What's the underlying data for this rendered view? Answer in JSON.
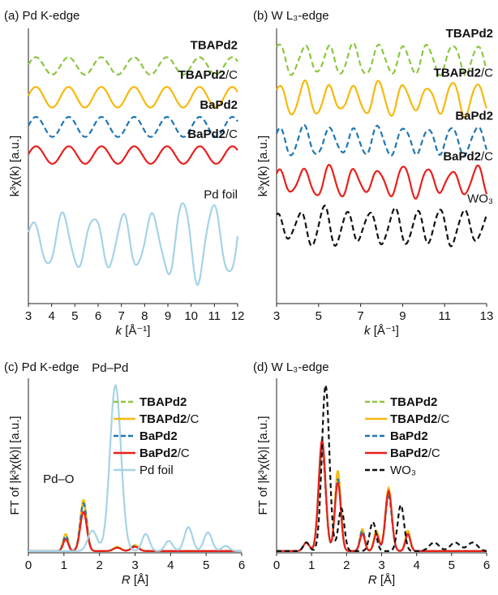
{
  "colors": {
    "tbapd2": "#8dc63f",
    "tbapd2c": "#f5b90f",
    "bapd2": "#1f77b4",
    "bapd2c": "#e8201c",
    "pdfoil": "#a6d3e6",
    "wo3": "#111111"
  },
  "chart_data": [
    {
      "id": "a",
      "type": "line",
      "panel_title": "(a) Pd K-edge",
      "xlabel_pre": "k",
      "xlabel_post": " [Å⁻¹]",
      "ylabel": "k³χ(k) [a.u.]",
      "xlim": [
        3,
        12
      ],
      "xticks": [
        "3",
        "4",
        "5",
        "6",
        "7",
        "8",
        "9",
        "10",
        "11",
        "12"
      ],
      "xtick_values": [
        3,
        4,
        5,
        6,
        7,
        8,
        9,
        10,
        11,
        12
      ],
      "series": [
        {
          "name": "TBAPd2",
          "label_main": "TBAPd2",
          "label_suffix": "",
          "color_key": "tbapd2",
          "dash": true,
          "offset": 4.0,
          "amp": 0.28,
          "freq": 1.42,
          "phase": 0.15,
          "noise": 0.0
        },
        {
          "name": "TBAPd2/C",
          "label_main": "TBAPd2",
          "label_suffix": "/C",
          "color_key": "tbapd2c",
          "dash": false,
          "offset": 3.0,
          "amp": 0.33,
          "freq": 1.42,
          "phase": 0.15,
          "noise": 0.0
        },
        {
          "name": "BaPd2",
          "label_main": "BaPd2",
          "label_suffix": "",
          "color_key": "bapd2",
          "dash": true,
          "offset": 2.05,
          "amp": 0.32,
          "freq": 1.42,
          "phase": 0.1,
          "noise": 0.0
        },
        {
          "name": "BaPd2/C",
          "label_main": "BaPd2",
          "label_suffix": "/C",
          "color_key": "bapd2c",
          "dash": false,
          "offset": 1.15,
          "amp": 0.28,
          "freq": 1.42,
          "phase": 0.1,
          "noise": 0.0
        },
        {
          "name": "Pd foil",
          "label_main": "",
          "label_suffix": "Pd foil",
          "color_key": "pdfoil",
          "dash": false,
          "offset": -1.6,
          "amp": 1.1,
          "freq": 1.55,
          "phase": 0.6,
          "noise": 0.35
        }
      ]
    },
    {
      "id": "b",
      "type": "line",
      "panel_title": "(b) W L₃-edge",
      "xlabel_pre": "k",
      "xlabel_post": " [Å⁻¹]",
      "ylabel": "k³χ(k) [a.u.]",
      "xlim": [
        3,
        13
      ],
      "xticks": [
        "3",
        "5",
        "7",
        "9",
        "11",
        "13"
      ],
      "xtick_values": [
        3,
        5,
        7,
        9,
        11,
        13
      ],
      "series": [
        {
          "name": "TBAPd2",
          "label_main": "TBAPd2",
          "label_suffix": "",
          "color_key": "tbapd2",
          "dash": true,
          "offset": 4.2,
          "amp": 0.45,
          "freq": 1.7,
          "phase": 0.8,
          "noise": 0.35
        },
        {
          "name": "TBAPd2/C",
          "label_main": "TBAPd2",
          "label_suffix": "/C",
          "color_key": "tbapd2c",
          "dash": false,
          "offset": 2.95,
          "amp": 0.45,
          "freq": 1.7,
          "phase": 0.8,
          "noise": 0.35
        },
        {
          "name": "BaPd2",
          "label_main": "BaPd2",
          "label_suffix": "",
          "color_key": "bapd2",
          "dash": true,
          "offset": 1.6,
          "amp": 0.42,
          "freq": 1.7,
          "phase": 0.8,
          "noise": 0.35
        },
        {
          "name": "BaPd2/C",
          "label_main": "BaPd2",
          "label_suffix": "/C",
          "color_key": "bapd2c",
          "dash": false,
          "offset": 0.3,
          "amp": 0.42,
          "freq": 1.7,
          "phase": 0.8,
          "noise": 0.35
        },
        {
          "name": "WO3",
          "label_main": "",
          "label_suffix": "WO₃",
          "color_key": "wo3",
          "dash": true,
          "offset": -1.15,
          "amp": 0.52,
          "freq": 1.8,
          "phase": 1.4,
          "noise": 0.4
        }
      ]
    },
    {
      "id": "c",
      "type": "line",
      "panel_title": "(c) Pd K-edge",
      "xlabel_pre": "R",
      "xlabel_post": " [Å]",
      "ylabel": "FT of |k³χ(k)| [a.u.]",
      "xlim": [
        0,
        6
      ],
      "ylim": [
        0,
        1
      ],
      "xticks": [
        "0",
        "1",
        "2",
        "3",
        "4",
        "5",
        "6"
      ],
      "xtick_values": [
        0,
        1,
        2,
        3,
        4,
        5,
        6
      ],
      "annotations": [
        "Pd–Pd",
        "Pd–O"
      ],
      "series": [
        {
          "name": "TBAPd2",
          "color_key": "tbapd2",
          "dash": true,
          "peaks": [
            [
              1.05,
              0.08,
              0.1
            ],
            [
              1.55,
              0.27,
              0.13
            ],
            [
              2.5,
              0.02,
              0.15
            ],
            [
              3.0,
              0.03,
              0.15
            ]
          ]
        },
        {
          "name": "TBAPd2/C",
          "color_key": "tbapd2c",
          "dash": false,
          "peaks": [
            [
              1.05,
              0.1,
              0.1
            ],
            [
              1.55,
              0.3,
              0.13
            ],
            [
              2.5,
              0.025,
              0.15
            ],
            [
              3.0,
              0.035,
              0.15
            ]
          ]
        },
        {
          "name": "BaPd2",
          "color_key": "bapd2",
          "dash": true,
          "peaks": [
            [
              1.05,
              0.09,
              0.1
            ],
            [
              1.55,
              0.28,
              0.13
            ],
            [
              2.5,
              0.02,
              0.15
            ],
            [
              3.0,
              0.03,
              0.15
            ]
          ]
        },
        {
          "name": "BaPd2/C",
          "color_key": "bapd2c",
          "dash": false,
          "peaks": [
            [
              1.05,
              0.07,
              0.1
            ],
            [
              1.55,
              0.23,
              0.13
            ],
            [
              2.5,
              0.02,
              0.15
            ],
            [
              3.0,
              0.025,
              0.15
            ]
          ]
        },
        {
          "name": "Pd foil",
          "color_key": "pdfoil",
          "dash": false,
          "peaks": [
            [
              1.8,
              0.12,
              0.18
            ],
            [
              2.45,
              0.97,
              0.22
            ],
            [
              3.3,
              0.1,
              0.15
            ],
            [
              3.95,
              0.06,
              0.15
            ],
            [
              4.5,
              0.14,
              0.16
            ],
            [
              5.05,
              0.11,
              0.16
            ],
            [
              5.55,
              0.03,
              0.15
            ]
          ]
        }
      ]
    },
    {
      "id": "d",
      "type": "line",
      "panel_title": "(d) W L₃-edge",
      "xlabel_pre": "R",
      "xlabel_post": " [Å]",
      "ylabel": "FT of |k³χ(k)| [a.u.]",
      "xlim": [
        0,
        6
      ],
      "ylim": [
        0,
        1
      ],
      "xticks": [
        "0",
        "1",
        "2",
        "3",
        "4",
        "5",
        "6"
      ],
      "xtick_values": [
        0,
        1,
        2,
        3,
        4,
        5,
        6
      ],
      "series": [
        {
          "name": "TBAPd2",
          "color_key": "tbapd2",
          "dash": true,
          "peaks": [
            [
              0.85,
              0.05,
              0.12
            ],
            [
              1.3,
              0.58,
              0.14
            ],
            [
              1.75,
              0.43,
              0.12
            ],
            [
              2.45,
              0.12,
              0.1
            ],
            [
              2.85,
              0.1,
              0.1
            ],
            [
              3.2,
              0.33,
              0.13
            ],
            [
              3.75,
              0.1,
              0.1
            ]
          ]
        },
        {
          "name": "TBAPd2/C",
          "color_key": "tbapd2c",
          "dash": false,
          "peaks": [
            [
              0.85,
              0.05,
              0.12
            ],
            [
              1.3,
              0.6,
              0.14
            ],
            [
              1.75,
              0.47,
              0.12
            ],
            [
              2.45,
              0.13,
              0.1
            ],
            [
              2.85,
              0.12,
              0.1
            ],
            [
              3.2,
              0.37,
              0.13
            ],
            [
              3.75,
              0.12,
              0.1
            ]
          ]
        },
        {
          "name": "BaPd2",
          "color_key": "bapd2",
          "dash": true,
          "peaks": [
            [
              0.85,
              0.05,
              0.12
            ],
            [
              1.3,
              0.6,
              0.14
            ],
            [
              1.75,
              0.42,
              0.12
            ],
            [
              2.45,
              0.12,
              0.1
            ],
            [
              2.85,
              0.1,
              0.1
            ],
            [
              3.2,
              0.32,
              0.13
            ],
            [
              3.75,
              0.1,
              0.1
            ]
          ]
        },
        {
          "name": "BaPd2/C",
          "color_key": "bapd2c",
          "dash": false,
          "peaks": [
            [
              0.85,
              0.05,
              0.12
            ],
            [
              1.3,
              0.65,
              0.14
            ],
            [
              1.75,
              0.4,
              0.12
            ],
            [
              2.45,
              0.1,
              0.1
            ],
            [
              2.85,
              0.1,
              0.1
            ],
            [
              3.2,
              0.35,
              0.13
            ],
            [
              3.75,
              0.1,
              0.1
            ]
          ]
        },
        {
          "name": "WO3",
          "color_key": "wo3",
          "dash": true,
          "peaks": [
            [
              0.85,
              0.05,
              0.12
            ],
            [
              1.4,
              0.97,
              0.15
            ],
            [
              1.85,
              0.25,
              0.12
            ],
            [
              2.75,
              0.17,
              0.13
            ],
            [
              3.55,
              0.27,
              0.13
            ],
            [
              4.5,
              0.05,
              0.2
            ],
            [
              5.1,
              0.05,
              0.2
            ],
            [
              5.6,
              0.05,
              0.2
            ]
          ]
        }
      ]
    }
  ],
  "legend_cd": [
    {
      "main": "TBAPd2",
      "suffix": "",
      "color_key": "tbapd2",
      "dash": true
    },
    {
      "main": "TBAPd2",
      "suffix": "/C",
      "color_key": "tbapd2c",
      "dash": false
    },
    {
      "main": "BaPd2",
      "suffix": "",
      "color_key": "bapd2",
      "dash": true
    },
    {
      "main": "BaPd2",
      "suffix": "/C",
      "color_key": "bapd2c",
      "dash": false
    }
  ],
  "legend_c_extra": "Pd foil",
  "legend_d_extra": "WO₃"
}
